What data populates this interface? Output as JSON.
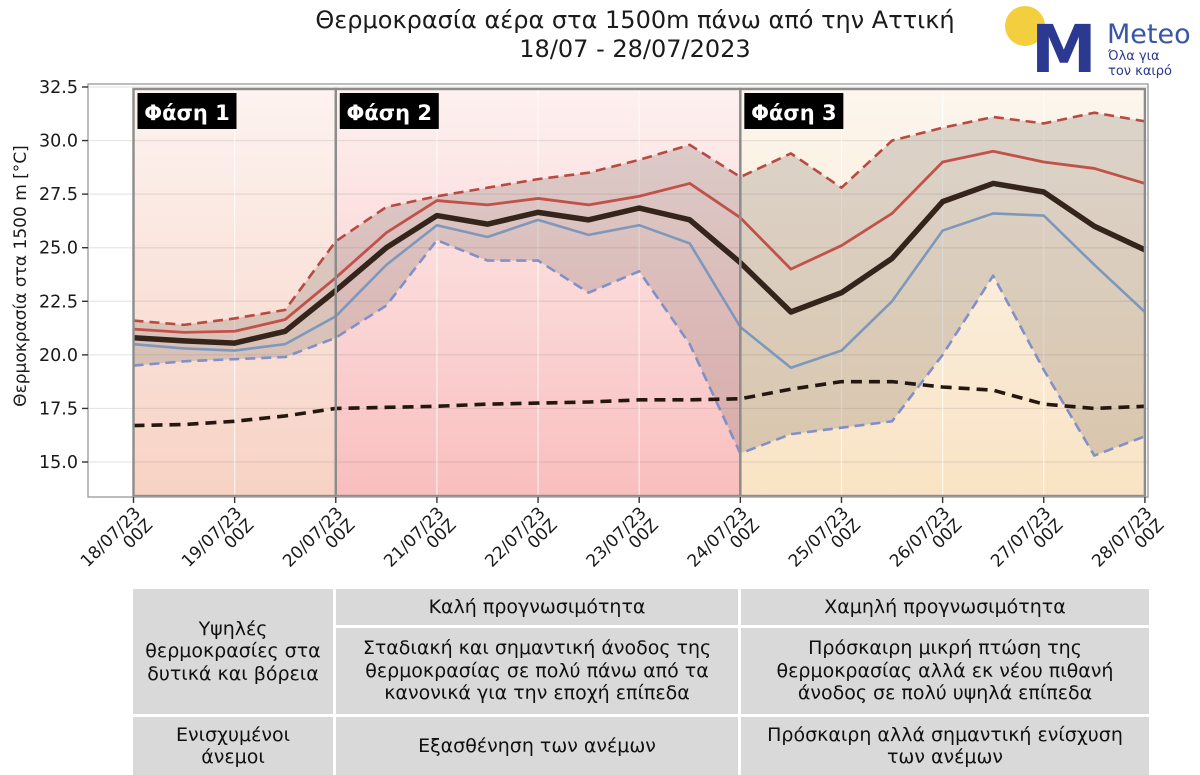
{
  "header": {
    "title": "Θερμοκρασία αέρα στα 1500m πάνω από την Αττική",
    "subtitle": "18/07 - 28/07/2023"
  },
  "logo": {
    "brand": "Meteo",
    "tagline_line1": "Όλα για",
    "tagline_line2": "τον καιρό",
    "m_color": "#2b3990",
    "sun_color": "#f3cf40",
    "brand_color": "#3a55a5",
    "tagline_color": "#2b3990"
  },
  "chart_data": {
    "type": "line",
    "title": "Θερμοκρασία αέρα στα 1500m πάνω από την Αττική 18/07 - 28/07/2023",
    "ylabel": "Θερμοκρασία στα 1500 m [°C]",
    "ylim": [
      13.4,
      32.6
    ],
    "yticks": [
      15.0,
      17.5,
      20.0,
      22.5,
      25.0,
      27.5,
      30.0,
      32.5
    ],
    "x_step_hours": 12,
    "x_day_labels": [
      "18/07/23",
      "19/07/23",
      "20/07/23",
      "21/07/23",
      "22/07/23",
      "23/07/23",
      "24/07/23",
      "25/07/23",
      "26/07/23",
      "27/07/23",
      "28/07/23"
    ],
    "x_hour_label": "00Z",
    "grid": true,
    "legend": "none",
    "envelope_fill": "rgba(104,90,82,0.22)",
    "series": [
      {
        "id": "ensemble-max-dashed-red",
        "color": "#b84a42",
        "width": 2.6,
        "dash": "10,6",
        "values": [
          21.6,
          21.4,
          21.7,
          22.1,
          25.3,
          26.9,
          27.4,
          27.8,
          28.2,
          28.5,
          29.1,
          29.8,
          28.3,
          29.4,
          27.8,
          30.0,
          30.6,
          31.1,
          30.8,
          31.3,
          30.9
        ]
      },
      {
        "id": "ensemble-min-dashed-blue",
        "color": "#8290c5",
        "width": 2.6,
        "dash": "10,6",
        "values": [
          19.5,
          19.7,
          19.8,
          19.9,
          20.8,
          22.3,
          25.35,
          24.4,
          24.4,
          22.9,
          23.9,
          20.5,
          15.4,
          16.3,
          16.6,
          16.9,
          20.0,
          23.7,
          19.3,
          15.3,
          16.2
        ]
      },
      {
        "id": "upper-red-solid",
        "color": "#c2514a",
        "width": 2.8,
        "dash": null,
        "values": [
          21.2,
          21.05,
          21.1,
          21.65,
          23.6,
          25.7,
          27.2,
          27.0,
          27.3,
          27.0,
          27.4,
          28.0,
          26.4,
          24.0,
          25.1,
          26.6,
          29.0,
          29.5,
          29.0,
          28.7,
          28.0
        ]
      },
      {
        "id": "lower-blue-solid",
        "color": "#7d98bb",
        "width": 2.6,
        "dash": null,
        "values": [
          20.5,
          20.3,
          20.2,
          20.5,
          21.8,
          24.2,
          26.05,
          25.5,
          26.3,
          25.6,
          26.05,
          25.2,
          21.3,
          19.4,
          20.2,
          22.5,
          25.8,
          26.6,
          26.5,
          24.2,
          22.0
        ]
      },
      {
        "id": "climatology-black-dashed",
        "color": "#241710",
        "width": 3.6,
        "dash": "11,7",
        "values": [
          16.7,
          16.75,
          16.9,
          17.15,
          17.5,
          17.55,
          17.6,
          17.7,
          17.75,
          17.8,
          17.9,
          17.9,
          17.95,
          18.4,
          18.75,
          18.75,
          18.5,
          18.35,
          17.7,
          17.5,
          17.6
        ]
      },
      {
        "id": "mean-black-thick",
        "color": "#35241b",
        "width": 5.5,
        "dash": null,
        "values": [
          20.8,
          20.65,
          20.55,
          21.1,
          23.0,
          25.0,
          26.5,
          26.1,
          26.65,
          26.3,
          26.85,
          26.3,
          24.3,
          22.0,
          22.9,
          24.5,
          27.15,
          28.0,
          27.6,
          26.0,
          24.9
        ]
      }
    ],
    "envelope": {
      "upper_series": "ensemble-max-dashed-red",
      "lower_series": "ensemble-min-dashed-blue"
    },
    "phases": [
      {
        "label": "Φάση 1",
        "start_index": 0,
        "end_index": 4,
        "bg_top": "#fdf3f0",
        "bg_bottom": "#f7d2c4"
      },
      {
        "label": "Φάση 2",
        "start_index": 4,
        "end_index": 12,
        "bg_top": "#fdf1f0",
        "bg_bottom": "#f9bebe"
      },
      {
        "label": "Φάση 3",
        "start_index": 12,
        "end_index": 20,
        "bg_top": "#fcf6ee",
        "bg_bottom": "#f9e3c4"
      }
    ]
  },
  "table": {
    "phase1": {
      "summary": "Υψηλές θερμοκρασίες στα δυτικά και βόρεια",
      "wind": "Ενισχυμένοι άνεμοι"
    },
    "phase2": {
      "predictability": "Καλή προγνωσιμότητα",
      "description": "Σταδιακή και σημαντική άνοδος της θερμοκρασίας σε πολύ πάνω από τα κανονικά για την εποχή επίπεδα",
      "wind": "Εξασθένηση των ανέμων"
    },
    "phase3": {
      "predictability": "Χαμηλή προγνωσιμότητα",
      "description": "Πρόσκαιρη μικρή πτώση της θερμοκρασίας αλλά εκ νέου πιθανή άνοδος σε πολύ υψηλά επίπεδα",
      "wind": "Πρόσκαιρη αλλά σημαντική ενίσχυση των ανέμων"
    }
  }
}
